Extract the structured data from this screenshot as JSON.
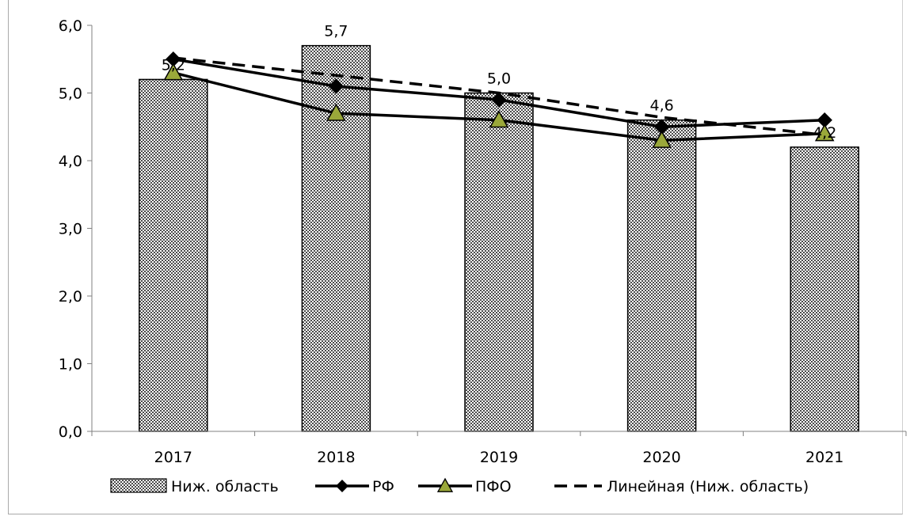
{
  "chart_data": {
    "type": "bar",
    "categories": [
      "2017",
      "2018",
      "2019",
      "2020",
      "2021"
    ],
    "yticks": [
      "0,0",
      "1,0",
      "2,0",
      "3,0",
      "4,0",
      "5,0",
      "6,0"
    ],
    "ylim": [
      0,
      6
    ],
    "series": [
      {
        "name": "Ниж. область",
        "kind": "bar",
        "values": [
          5.2,
          5.7,
          5.0,
          4.6,
          4.2
        ],
        "data_labels": [
          "5,2",
          "5,7",
          "5,0",
          "4,6",
          "4,2"
        ]
      },
      {
        "name": "РФ",
        "kind": "line",
        "marker": "diamond",
        "values": [
          5.5,
          5.1,
          4.9,
          4.5,
          4.6
        ]
      },
      {
        "name": "ПФО",
        "kind": "line",
        "marker": "triangle",
        "values": [
          5.3,
          4.7,
          4.6,
          4.3,
          4.4
        ]
      },
      {
        "name": "Линейная (Ниж. область)",
        "kind": "trendline",
        "style": "dashed",
        "values": [
          5.52,
          5.26,
          5.0,
          4.64,
          4.38
        ]
      }
    ],
    "grid": false,
    "legend": "bottom",
    "colors": {
      "bar_fill": "#9a9a9a",
      "line": "#000000",
      "triangle_fill": "#9aa83a"
    }
  }
}
